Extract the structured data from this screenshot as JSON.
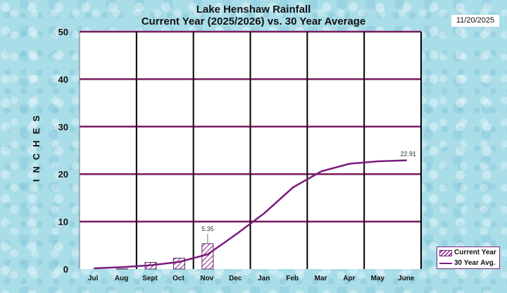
{
  "header": {
    "title_line1": "Lake Henshaw Rainfall",
    "title_line2": "Current Year (2025/2026) vs. 30 Year Average",
    "date": "11/20/2025"
  },
  "axis": {
    "ylabel": "INCHES",
    "yticks": [
      "0",
      "10",
      "20",
      "30",
      "40",
      "50"
    ]
  },
  "legend": {
    "current_year": "Current Year",
    "avg": "30 Year Avg."
  },
  "colors": {
    "plot_bg": "#ffffff",
    "hgrid": "#7a1a5e",
    "vgrid": "#000000",
    "avg_line": "#7a1a7e",
    "bar_hatch": "#8b1e8b"
  },
  "chart_data": {
    "type": "bar+line",
    "title": "Lake Henshaw Rainfall — Current Year (2025/2026) vs. 30 Year Average",
    "xlabel": "",
    "ylabel": "INCHES",
    "ylim": [
      0,
      50
    ],
    "yticks": [
      0,
      10,
      20,
      30,
      40,
      50
    ],
    "grid": "horizontal gridlines every 10; vertical dividers every 2 months",
    "legend_position": "bottom-right",
    "categories": [
      "Jul",
      "Aug",
      "Sept",
      "Oct",
      "Nov",
      "Dec",
      "Jan",
      "Feb",
      "Mar",
      "Apr",
      "May",
      "June"
    ],
    "series": [
      {
        "name": "Current Year",
        "type": "bar",
        "values": [
          0.0,
          0.05,
          1.4,
          2.3,
          5.35,
          null,
          null,
          null,
          null,
          null,
          null,
          null
        ]
      },
      {
        "name": "30 Year Avg.",
        "type": "line",
        "values": [
          0.15,
          0.4,
          0.8,
          1.5,
          3.1,
          7.3,
          11.8,
          17.2,
          20.6,
          22.2,
          22.7,
          22.91
        ]
      }
    ],
    "annotations": [
      {
        "label": "5.35",
        "at": "Nov",
        "series": "Current Year"
      },
      {
        "label": "22.91",
        "at": "June",
        "series": "30 Year Avg."
      }
    ]
  }
}
